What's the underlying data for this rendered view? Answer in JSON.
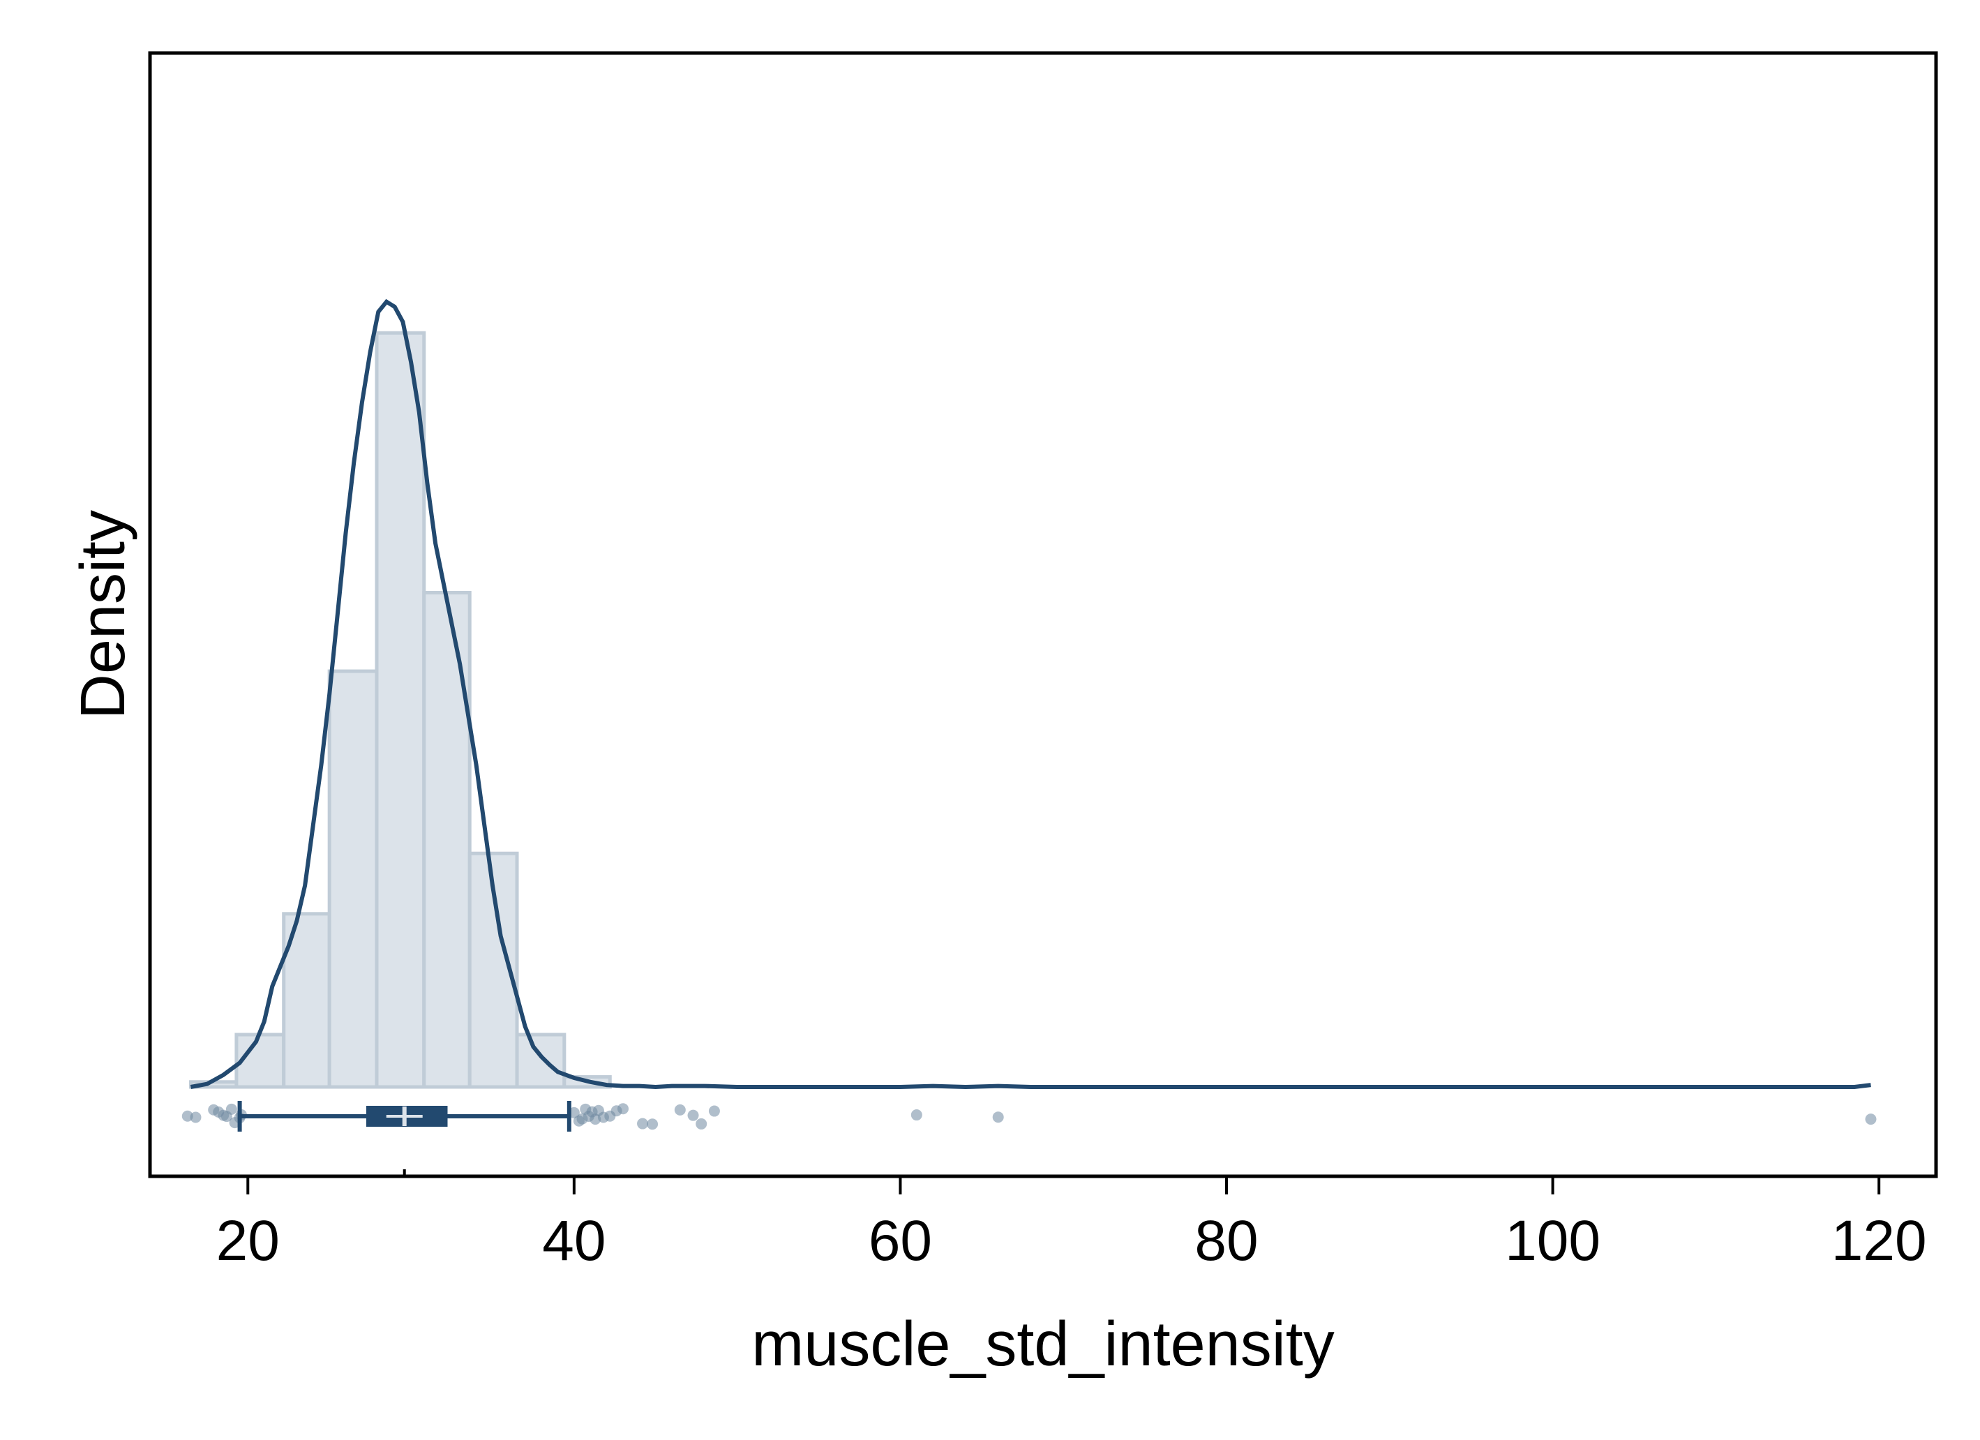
{
  "chart_data": {
    "type": "histogram",
    "title": "",
    "xlabel": "muscle_std_intensity",
    "ylabel": "Density",
    "xlim": [
      14,
      123.5
    ],
    "ylim": [
      0,
      1
    ],
    "x_ticks": [
      20,
      40,
      60,
      80,
      100,
      120
    ],
    "x_tick_labels": [
      "20",
      "40",
      "60",
      "80",
      "100",
      "120"
    ],
    "y_ticks": [],
    "grid": false,
    "legend": "none",
    "colors": {
      "bar_fill": "#dce3ea",
      "bar_stroke": "#c0ccd7",
      "line": "#22496f",
      "points": "#6f88a1",
      "median_mark": "#dce3ea"
    },
    "histogram": {
      "bins": [
        {
          "x0": 16.5,
          "x1": 19.3,
          "density": 0.005
        },
        {
          "x0": 19.3,
          "x1": 22.2,
          "density": 0.052
        },
        {
          "x0": 22.2,
          "x1": 25.0,
          "density": 0.172
        },
        {
          "x0": 25.0,
          "x1": 27.9,
          "density": 0.413
        },
        {
          "x0": 27.9,
          "x1": 30.8,
          "density": 0.749
        },
        {
          "x0": 30.8,
          "x1": 33.6,
          "density": 0.491
        },
        {
          "x0": 33.6,
          "x1": 36.5,
          "density": 0.232
        },
        {
          "x0": 36.5,
          "x1": 39.4,
          "density": 0.052
        },
        {
          "x0": 39.4,
          "x1": 42.2,
          "density": 0.01
        }
      ]
    },
    "kde": {
      "x": [
        16.5,
        17.5,
        18.5,
        19.5,
        20.5,
        21.0,
        21.5,
        22.0,
        22.5,
        23.0,
        23.5,
        24.0,
        24.5,
        25.0,
        25.5,
        26.0,
        26.5,
        27.0,
        27.5,
        28.0,
        28.5,
        29.0,
        29.5,
        30.0,
        30.5,
        31.0,
        31.5,
        32.0,
        32.5,
        33.0,
        33.5,
        34.0,
        34.5,
        35.0,
        35.5,
        36.0,
        36.5,
        37.0,
        37.5,
        38.0,
        38.5,
        39.0,
        40.0,
        41.0,
        42.0,
        43.0,
        44.0,
        45.0,
        46.0,
        48.0,
        50.0,
        55.0,
        60.0,
        62.0,
        64.0,
        66.0,
        68.0,
        70.0,
        80.0,
        90.0,
        100.0,
        110.0,
        117.0,
        118.5,
        119.5
      ],
      "density": [
        0.0,
        0.003,
        0.012,
        0.024,
        0.045,
        0.065,
        0.1,
        0.12,
        0.14,
        0.165,
        0.2,
        0.26,
        0.32,
        0.39,
        0.47,
        0.55,
        0.62,
        0.68,
        0.73,
        0.77,
        0.78,
        0.775,
        0.76,
        0.72,
        0.67,
        0.6,
        0.54,
        0.5,
        0.46,
        0.42,
        0.37,
        0.32,
        0.26,
        0.2,
        0.15,
        0.12,
        0.09,
        0.06,
        0.04,
        0.03,
        0.022,
        0.015,
        0.009,
        0.005,
        0.002,
        0.001,
        0.001,
        0.0,
        0.001,
        0.001,
        0.0,
        0.0,
        0.0,
        0.001,
        0.0,
        0.001,
        0.0,
        0.0,
        0.0,
        0.0,
        0.0,
        0.0,
        0.0,
        0.0,
        0.002
      ]
    },
    "boxplot": {
      "whisker_low": 19.5,
      "q1": 27.3,
      "median": 29.6,
      "q3": 32.2,
      "whisker_high": 39.7
    },
    "points": [
      16.3,
      16.8,
      17.9,
      18.2,
      18.5,
      18.7,
      19.0,
      19.2,
      19.5,
      19.6,
      40.0,
      40.3,
      40.5,
      40.7,
      40.9,
      41.1,
      41.3,
      41.5,
      41.8,
      42.2,
      42.6,
      43.0,
      44.2,
      44.8,
      46.5,
      47.3,
      47.8,
      48.6,
      61.0,
      66.0,
      119.5
    ]
  }
}
